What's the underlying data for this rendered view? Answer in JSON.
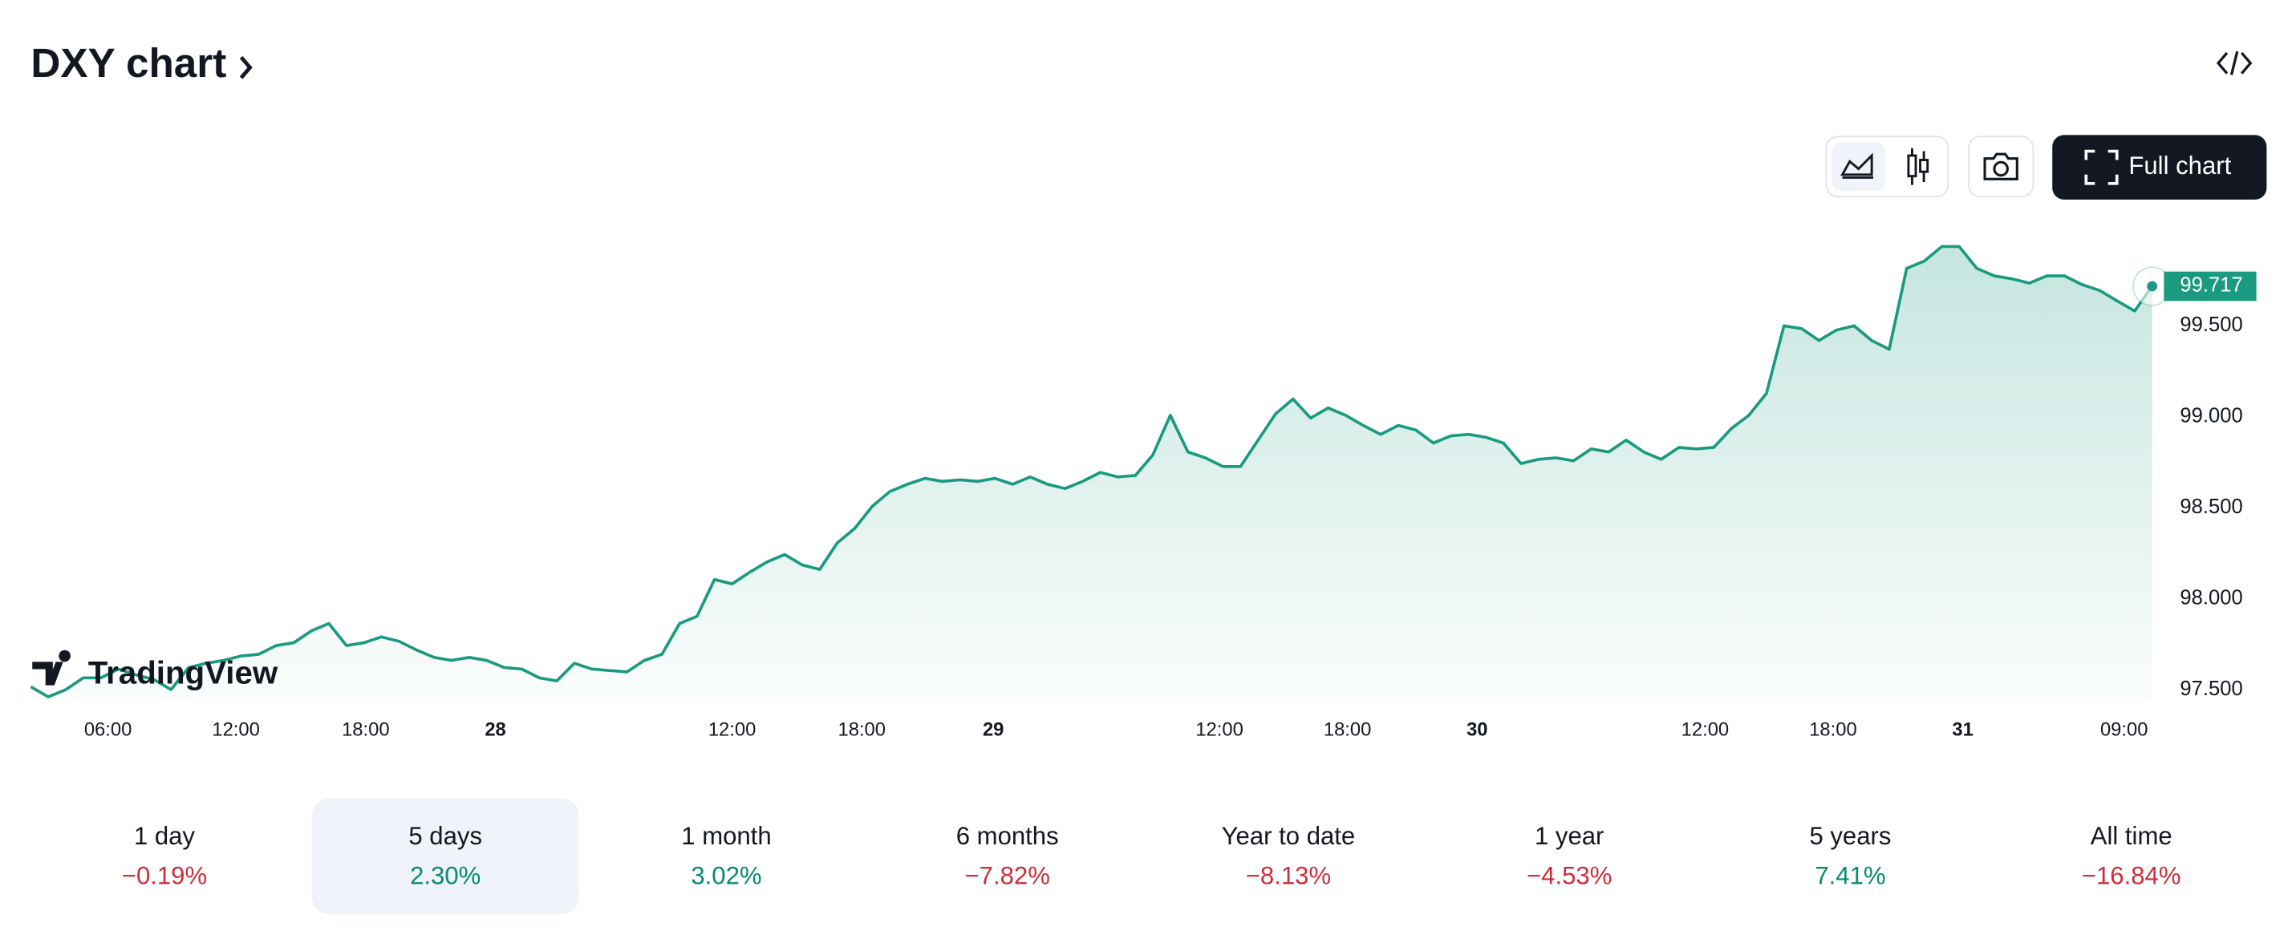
{
  "header": {
    "title": "DXY chart"
  },
  "toolbar": {
    "full_chart": "Full chart"
  },
  "watermark": "TradingView",
  "chart_data": {
    "type": "line",
    "series": [
      {
        "name": "DXY",
        "color": "#1a9a80",
        "values": [
          97.516,
          97.46,
          97.5,
          97.565,
          97.565,
          97.613,
          97.581,
          97.556,
          97.5,
          97.621,
          97.645,
          97.661,
          97.685,
          97.694,
          97.742,
          97.758,
          97.823,
          97.863,
          97.742,
          97.758,
          97.79,
          97.766,
          97.718,
          97.677,
          97.661,
          97.677,
          97.661,
          97.621,
          97.613,
          97.565,
          97.548,
          97.645,
          97.613,
          97.605,
          97.597,
          97.661,
          97.694,
          97.863,
          97.903,
          98.105,
          98.081,
          98.145,
          98.202,
          98.242,
          98.185,
          98.161,
          98.306,
          98.387,
          98.508,
          98.589,
          98.629,
          98.661,
          98.645,
          98.653,
          98.645,
          98.661,
          98.629,
          98.669,
          98.629,
          98.605,
          98.645,
          98.694,
          98.669,
          98.677,
          98.79,
          99.008,
          98.806,
          98.774,
          98.726,
          98.726,
          98.871,
          99.016,
          99.097,
          98.992,
          99.048,
          99.008,
          98.952,
          98.903,
          98.952,
          98.927,
          98.855,
          98.895,
          98.903,
          98.887,
          98.855,
          98.742,
          98.766,
          98.774,
          98.758,
          98.823,
          98.806,
          98.871,
          98.806,
          98.766,
          98.831,
          98.823,
          98.831,
          98.935,
          99.008,
          99.129,
          99.5,
          99.484,
          99.419,
          99.476,
          99.5,
          99.419,
          99.371,
          99.815,
          99.855,
          99.935,
          99.935,
          99.815,
          99.774,
          99.758,
          99.734,
          99.774,
          99.774,
          99.726,
          99.694,
          99.637,
          99.581,
          99.717
        ]
      }
    ],
    "xlim": [
      0,
      121
    ],
    "xticks": [
      {
        "value": 4.4,
        "label": "06:00"
      },
      {
        "value": 11.7,
        "label": "12:00"
      },
      {
        "value": 19.1,
        "label": "18:00"
      },
      {
        "value": 26.5,
        "label": "28",
        "bold": true
      },
      {
        "value": 40.0,
        "label": "12:00"
      },
      {
        "value": 47.4,
        "label": "18:00"
      },
      {
        "value": 54.9,
        "label": "29",
        "bold": true
      },
      {
        "value": 67.8,
        "label": "12:00"
      },
      {
        "value": 75.1,
        "label": "18:00"
      },
      {
        "value": 82.5,
        "label": "30",
        "bold": true
      },
      {
        "value": 95.5,
        "label": "12:00"
      },
      {
        "value": 102.8,
        "label": "18:00"
      },
      {
        "value": 110.2,
        "label": "31",
        "bold": true
      },
      {
        "value": 119.4,
        "label": "09:00"
      }
    ],
    "ylim": [
      97.435,
      100.04
    ],
    "yticks": [
      {
        "value": 97.5,
        "label": "97.500"
      },
      {
        "value": 98,
        "label": "98.000"
      },
      {
        "value": 98.5,
        "label": "98.500"
      },
      {
        "value": 99,
        "label": "99.000"
      },
      {
        "value": 99.5,
        "label": "99.500"
      }
    ],
    "grid": false
  },
  "periods": [
    {
      "label": "1 day",
      "change": "−0.19%",
      "color": "#cc2f3c"
    },
    {
      "label": "5 days",
      "change": "2.30%",
      "color": "#0a8a72",
      "selected": true
    },
    {
      "label": "1 month",
      "change": "3.02%",
      "color": "#0a8a72"
    },
    {
      "label": "6 months",
      "change": "−7.82%",
      "color": "#cc2f3c"
    },
    {
      "label": "Year to date",
      "change": "−8.13%",
      "color": "#cc2f3c"
    },
    {
      "label": "1 year",
      "change": "−4.53%",
      "color": "#cc2f3c"
    },
    {
      "label": "5 years",
      "change": "7.41%",
      "color": "#0a8a72"
    },
    {
      "label": "All time",
      "change": "−16.84%",
      "color": "#cc2f3c"
    }
  ]
}
